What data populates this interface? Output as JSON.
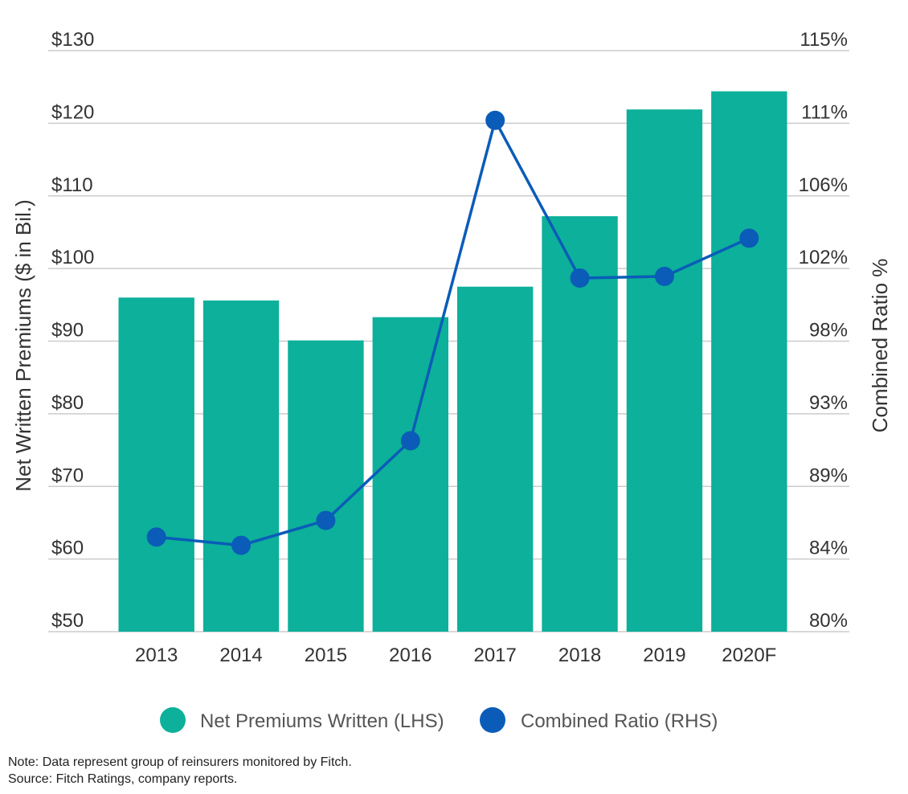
{
  "chart_data": {
    "type": "bar",
    "categories": [
      "2013",
      "2014",
      "2015",
      "2016",
      "2017",
      "2018",
      "2019",
      "2020F"
    ],
    "series": [
      {
        "name": "Net Premiums Written (LHS)",
        "type": "bar",
        "axis": "left",
        "color": "#0db09a",
        "values": [
          96,
          95.6,
          90.1,
          93.3,
          97.5,
          107.2,
          121.9,
          124.4
        ]
      },
      {
        "name": "Combined Ratio (RHS)",
        "type": "line",
        "axis": "right",
        "color": "#0a5cb8",
        "values": [
          85.7,
          85.2,
          86.7,
          91.5,
          110.8,
          101.3,
          101.4,
          103.7
        ]
      }
    ],
    "left_axis": {
      "label": "Net Written Premiums ($ in Bil.)",
      "range": [
        50,
        130
      ],
      "ticks": [
        50,
        60,
        70,
        80,
        90,
        100,
        110,
        120,
        130
      ],
      "tick_labels": [
        "$50",
        "$60",
        "$70",
        "$80",
        "$90",
        "$100",
        "$110",
        "$120",
        "$130"
      ]
    },
    "right_axis": {
      "label": "Combined Ratio %",
      "range": [
        80,
        115
      ],
      "tick_labels": [
        "80%",
        "84%",
        "89%",
        "93%",
        "98%",
        "102%",
        "106%",
        "111%",
        "115%"
      ]
    },
    "grid": true,
    "legend_placement": "bottom",
    "colors": {
      "grid": "#cccccc",
      "text": "#333333",
      "legend_text": "#555555"
    }
  },
  "footnotes": {
    "note": "Note: Data represent group of reinsurers monitored by Fitch.",
    "source": "Source: Fitch Ratings, company reports."
  }
}
